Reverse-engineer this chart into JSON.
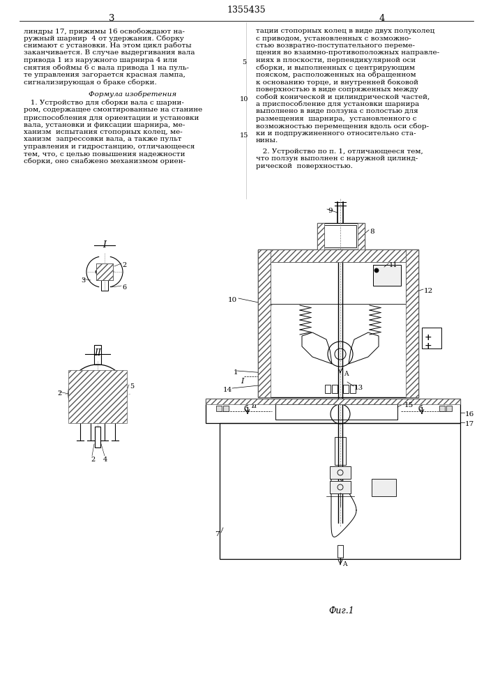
{
  "patent_number": "1355435",
  "page_left": "3",
  "page_right": "4",
  "col_left_text": [
    "линдры 17, прижимы 16 освобождают на-",
    "ружный шарнир  4 от удержания. Сборку",
    "снимают с установки. На этом цикл работы",
    "заканчивается. В случае выдергивания вала",
    "привода 1 из наружного шарнира 4 или",
    "снятия обоймы 6 с вала привода 1 на пуль-",
    "те управления загорается красная лампа,",
    "сигнализирующая о браке сборки."
  ],
  "col_left_formula_title": "Формула изобретения",
  "col_left_formula": [
    "   1. Устройство для сборки вала с шарни-",
    "ром, содержащее смонтированные на станине",
    "приспособления для ориентации и установки",
    "вала, установки и фиксации шарнира, ме-",
    "ханизм  испытания стопорных колец, ме-",
    "ханизм  запрессовки вала, а также пульт",
    "управления и гидростанцию, отличающееся",
    "тем, что, с целью повышения надежности",
    "сборки, оно снабжено механизмом ориен-"
  ],
  "col_right_text": [
    "тации стопорных колец в виде двух полуколец",
    "с приводом, установленных с возможно-",
    "стью возвратно-поступательного переме-",
    "щения во взаимно-противоположных направле-",
    "ниях в плоскости, перпендикулярной оси",
    "сборки, и выполненных с центрирующим",
    "пояском, расположенных на обращенном",
    "к основанию торце, и внутренней боковой",
    "поверхностью в виде сопряженных между",
    "собой конической и цилиндрической частей,",
    "а приспособление для установки шарнира",
    "выполнено в виде ползуна с полостью для",
    "размещения  шарнира,  установленного с",
    "возможностью перемещения вдоль оси сбор-",
    "ки и подпружиненного относительно ста-",
    "нины."
  ],
  "col_right_claim2": [
    "   2. Устройство по п. 1, отличающееся тем,",
    "что ползун выполнен с наружной цилинд-",
    "рической  поверхностью."
  ],
  "fig_label": "Фиг.1",
  "background_color": "#ffffff",
  "text_color": "#000000",
  "font_size_body": 7.5,
  "font_size_header": 9.0,
  "font_size_page": 9.5
}
